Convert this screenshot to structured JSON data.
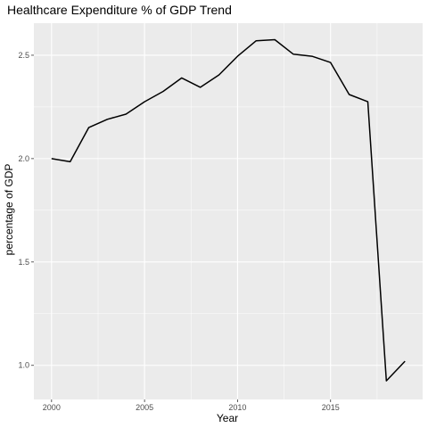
{
  "chart_data": {
    "type": "line",
    "title": "Healthcare Expenditure % of GDP Trend",
    "xlabel": "Year",
    "ylabel": "percentage of GDP",
    "x": [
      2000,
      2001,
      2002,
      2003,
      2004,
      2005,
      2006,
      2007,
      2008,
      2009,
      2010,
      2011,
      2012,
      2013,
      2014,
      2015,
      2016,
      2017,
      2018,
      2019
    ],
    "series": [
      {
        "values": [
          2.0,
          1.985,
          2.15,
          2.19,
          2.215,
          2.275,
          2.325,
          2.39,
          2.345,
          2.405,
          2.495,
          2.57,
          2.575,
          2.505,
          2.495,
          2.465,
          2.31,
          2.275,
          0.925,
          1.02
        ]
      }
    ],
    "xlim": [
      1999.05,
      2019.95
    ],
    "ylim": [
      0.835,
      2.655
    ],
    "x_ticks": [
      2000,
      2005,
      2010,
      2015
    ],
    "x_tick_labels": [
      "2000",
      "2005",
      "2010",
      "2015"
    ],
    "y_ticks": [
      1.0,
      1.5,
      2.0,
      2.5
    ],
    "y_tick_labels": [
      "1.0",
      "1.5",
      "2.0",
      "2.5"
    ],
    "grid": true,
    "panel_color": "#ebebeb",
    "line_color": "#000000"
  }
}
